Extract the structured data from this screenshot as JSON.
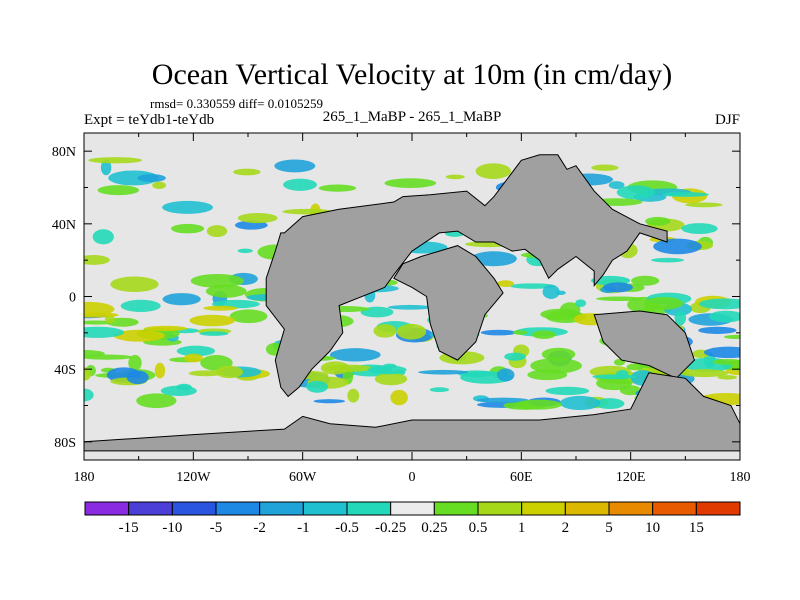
{
  "chart_data": {
    "type": "heatmap",
    "title": "Ocean Vertical Velocity at 10m (in cm/day)",
    "stats_text": "rmsd= 0.330559  diff= 0.0105259",
    "left_label": "Expt = teYdb1-teYdb",
    "center_label": "265_1_MaBP - 265_1_MaBP",
    "right_label": "DJF",
    "x_axis": {
      "range": [
        -180,
        180
      ],
      "ticks": [
        {
          "value": -180,
          "label": "180"
        },
        {
          "value": -120,
          "label": "120W"
        },
        {
          "value": -60,
          "label": "60W"
        },
        {
          "value": 0,
          "label": "0"
        },
        {
          "value": 60,
          "label": "60E"
        },
        {
          "value": 120,
          "label": "120E"
        },
        {
          "value": 180,
          "label": "180"
        }
      ]
    },
    "y_axis": {
      "range": [
        -90,
        90
      ],
      "ticks": [
        {
          "value": 80,
          "label": "80N"
        },
        {
          "value": 40,
          "label": "40N"
        },
        {
          "value": 0,
          "label": "0"
        },
        {
          "value": -40,
          "label": "40S"
        },
        {
          "value": -80,
          "label": "80S"
        }
      ]
    },
    "colorbar": {
      "colors": [
        "#8a2be2",
        "#4b3fd8",
        "#2a55e0",
        "#1e88e5",
        "#1fa3d9",
        "#20c0d0",
        "#22d8b8",
        "#ececec",
        "#66dd22",
        "#a6d81a",
        "#ccd000",
        "#dcb800",
        "#e88a00",
        "#e85a00",
        "#e03a00"
      ],
      "labels": [
        "-15",
        "-10",
        "-5",
        "-2",
        "-1",
        "-0.5",
        "-0.25",
        "0.25",
        "0.5",
        "1",
        "2",
        "5",
        "10",
        "15"
      ]
    },
    "ocean_color": "#e6e6e6",
    "land_color": "#a0a0a0",
    "land_polygons": [
      [
        [
          -70,
          35
        ],
        [
          -60,
          44
        ],
        [
          -40,
          48
        ],
        [
          -10,
          52
        ],
        [
          -5,
          55
        ],
        [
          10,
          56
        ],
        [
          30,
          58
        ],
        [
          40,
          50
        ],
        [
          45,
          55
        ],
        [
          60,
          75
        ],
        [
          70,
          78
        ],
        [
          80,
          78
        ],
        [
          85,
          70
        ],
        [
          90,
          72
        ],
        [
          100,
          58
        ],
        [
          110,
          48
        ],
        [
          125,
          40
        ],
        [
          140,
          36
        ],
        [
          140,
          30
        ],
        [
          125,
          35
        ],
        [
          118,
          25
        ],
        [
          110,
          20
        ],
        [
          105,
          12
        ],
        [
          100,
          6
        ],
        [
          100,
          14
        ],
        [
          90,
          22
        ],
        [
          80,
          15
        ],
        [
          75,
          10
        ],
        [
          70,
          20
        ],
        [
          62,
          26
        ],
        [
          55,
          25
        ],
        [
          45,
          30
        ],
        [
          35,
          30
        ],
        [
          25,
          36
        ],
        [
          15,
          35
        ],
        [
          0,
          25
        ],
        [
          -10,
          12
        ],
        [
          -15,
          5
        ],
        [
          -40,
          -5
        ],
        [
          -38,
          -20
        ],
        [
          -45,
          -30
        ],
        [
          -55,
          -40
        ],
        [
          -62,
          -50
        ],
        [
          -68,
          -55
        ],
        [
          -72,
          -50
        ],
        [
          -75,
          -35
        ],
        [
          -70,
          -18
        ],
        [
          -80,
          -5
        ],
        [
          -80,
          10
        ],
        [
          -75,
          25
        ],
        [
          -72,
          35
        ]
      ],
      [
        [
          5,
          22
        ],
        [
          15,
          25
        ],
        [
          25,
          28
        ],
        [
          35,
          22
        ],
        [
          45,
          10
        ],
        [
          50,
          2
        ],
        [
          40,
          -10
        ],
        [
          35,
          -25
        ],
        [
          25,
          -35
        ],
        [
          15,
          -30
        ],
        [
          10,
          -15
        ],
        [
          8,
          0
        ],
        [
          0,
          5
        ],
        [
          -10,
          10
        ],
        [
          -5,
          18
        ]
      ],
      [
        [
          100,
          -10
        ],
        [
          125,
          -8
        ],
        [
          140,
          -10
        ],
        [
          150,
          -20
        ],
        [
          155,
          -35
        ],
        [
          145,
          -45
        ],
        [
          130,
          -38
        ],
        [
          115,
          -35
        ],
        [
          105,
          -25
        ]
      ],
      [
        [
          130,
          -42
        ],
        [
          150,
          -45
        ],
        [
          160,
          -55
        ],
        [
          175,
          -60
        ],
        [
          180,
          -70
        ],
        [
          180,
          -85
        ],
        [
          -180,
          -85
        ],
        [
          -180,
          -80
        ],
        [
          -120,
          -76
        ],
        [
          -70,
          -73
        ],
        [
          -60,
          -66
        ],
        [
          -45,
          -70
        ],
        [
          -20,
          -72
        ],
        [
          0,
          -68
        ],
        [
          40,
          -68
        ],
        [
          70,
          -68
        ],
        [
          100,
          -65
        ],
        [
          120,
          -62
        ]
      ]
    ]
  }
}
